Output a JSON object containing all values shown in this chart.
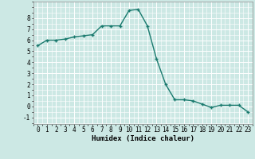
{
  "x": [
    0,
    1,
    2,
    3,
    4,
    5,
    6,
    7,
    8,
    9,
    10,
    11,
    12,
    13,
    14,
    15,
    16,
    17,
    18,
    19,
    20,
    21,
    22,
    23
  ],
  "y": [
    5.5,
    6.0,
    6.0,
    6.1,
    6.3,
    6.4,
    6.5,
    7.3,
    7.3,
    7.3,
    8.7,
    8.8,
    7.3,
    4.3,
    2.0,
    0.6,
    0.6,
    0.5,
    0.2,
    -0.1,
    0.1,
    0.1,
    0.1,
    -0.5
  ],
  "line_color": "#1a7a6e",
  "marker": "+",
  "marker_color": "#1a7a6e",
  "bg_color": "#cce8e4",
  "grid_color": "#ffffff",
  "xlabel": "Humidex (Indice chaleur)",
  "xlabel_fontsize": 6.5,
  "xlim": [
    -0.5,
    23.5
  ],
  "ylim": [
    -1.6,
    9.5
  ],
  "yticks": [
    -1,
    0,
    1,
    2,
    3,
    4,
    5,
    6,
    7,
    8
  ],
  "xticks": [
    0,
    1,
    2,
    3,
    4,
    5,
    6,
    7,
    8,
    9,
    10,
    11,
    12,
    13,
    14,
    15,
    16,
    17,
    18,
    19,
    20,
    21,
    22,
    23
  ],
  "tick_fontsize": 5.5,
  "line_width": 1.0,
  "marker_size": 3.5
}
